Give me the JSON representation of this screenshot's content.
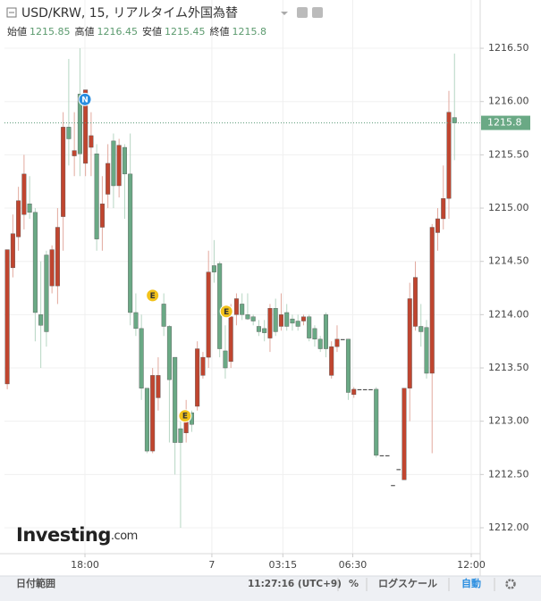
{
  "chart_data": {
    "type": "candlestick",
    "title": "USD/KRW, 15, リアルタイム外国為替",
    "ohlc_labels": [
      "始値",
      "高値",
      "安値",
      "終値"
    ],
    "up_color": "#c0452f",
    "down_color": "#6aa985",
    "open": [
      1213.35,
      1214.44,
      1214.73,
      1214.94,
      1215.04,
      1214.96,
      1214.0,
      1214.56,
      1214.27,
      1214.27,
      1214.92,
      1215.76,
      1215.49,
      1216.07,
      1215.42,
      1215.57,
      1215.51,
      1214.82,
      1215.13,
      1215.63,
      1215.21,
      1215.57,
      1215.32,
      1214.02,
      1213.87,
      1213.31,
      1212.72,
      1213.22,
      1214.1,
      1213.89,
      1213.6,
      1212.93,
      1212.89,
      1213.08,
      1213.14,
      1213.43,
      1213.6,
      1214.46,
      1214.48,
      1213.66,
      1213.56,
      1214.0,
      1214.1,
      1214.0,
      1213.98,
      1213.89,
      1213.87,
      1213.78,
      1214.06,
      1213.89,
      1214.02,
      1213.96,
      1213.94,
      1213.94,
      1213.98,
      1213.87,
      1213.77,
      1214.0,
      1213.43,
      1213.7,
      1213.77,
      1213.77,
      1213.25,
      1213.3,
      1213.3,
      1213.3,
      1213.3,
      1212.68,
      1212.68,
      1212.4,
      1212.55,
      1212.45,
      1213.31,
      1213.89,
      1213.89,
      1213.88,
      1213.45,
      1214.77,
      1214.9,
      1215.09,
      1215.85
    ],
    "high": [
      1214.61,
      1214.94,
      1215.2,
      1215.5,
      1215.3,
      1215.0,
      1214.5,
      1214.6,
      1214.65,
      1215.0,
      1215.9,
      1216.4,
      1215.9,
      1216.5,
      1216.11,
      1215.9,
      1215.6,
      1215.3,
      1215.6,
      1215.7,
      1215.65,
      1215.6,
      1215.7,
      1214.2,
      1214.0,
      1213.31,
      1213.5,
      1213.6,
      1214.2,
      1213.9,
      1213.6,
      1213.0,
      1213.2,
      1213.1,
      1213.75,
      1213.65,
      1214.6,
      1214.7,
      1214.5,
      1213.9,
      1214.1,
      1214.2,
      1214.2,
      1214.2,
      1214.0,
      1213.95,
      1213.95,
      1214.1,
      1214.15,
      1214.2,
      1214.1,
      1214.0,
      1214.0,
      1214.0,
      1214.0,
      1213.9,
      1213.8,
      1214.02,
      1213.75,
      1213.9,
      1213.77,
      1213.77,
      1213.32,
      1213.3,
      1213.3,
      1213.3,
      1213.32,
      1212.68,
      1212.68,
      1212.4,
      1212.55,
      1213.31,
      1214.3,
      1214.5,
      1214.1,
      1213.95,
      1214.85,
      1215.0,
      1215.4,
      1216.1,
      1216.45
    ],
    "low": [
      1213.3,
      1214.35,
      1214.6,
      1214.8,
      1214.9,
      1213.75,
      1213.5,
      1213.7,
      1214.2,
      1214.1,
      1214.6,
      1215.4,
      1215.3,
      1215.3,
      1215.3,
      1215.3,
      1214.6,
      1214.6,
      1215.0,
      1215.0,
      1215.1,
      1214.9,
      1213.9,
      1213.8,
      1213.2,
      1212.7,
      1212.7,
      1213.1,
      1213.8,
      1212.8,
      1212.5,
      1212.0,
      1212.8,
      1212.9,
      1213.1,
      1213.4,
      1213.5,
      1214.3,
      1213.6,
      1213.4,
      1213.5,
      1213.9,
      1213.95,
      1213.95,
      1213.9,
      1213.8,
      1213.75,
      1213.65,
      1213.8,
      1213.85,
      1213.85,
      1213.85,
      1213.85,
      1213.9,
      1213.75,
      1213.7,
      1213.65,
      1213.6,
      1213.4,
      1213.65,
      1213.77,
      1213.2,
      1213.22,
      1213.3,
      1213.3,
      1213.3,
      1212.66,
      1212.68,
      1212.68,
      1212.4,
      1212.55,
      1212.45,
      1213.0,
      1213.85,
      1213.7,
      1213.4,
      1212.7,
      1214.6,
      1214.8,
      1214.9,
      1215.45
    ],
    "close": [
      1214.61,
      1214.76,
      1215.07,
      1215.32,
      1214.96,
      1214.02,
      1213.9,
      1213.84,
      1214.61,
      1214.82,
      1215.76,
      1215.65,
      1215.54,
      1215.51,
      1216.11,
      1215.68,
      1214.71,
      1215.04,
      1215.42,
      1215.21,
      1215.59,
      1215.32,
      1214.02,
      1213.87,
      1213.31,
      1212.72,
      1213.43,
      1213.43,
      1213.89,
      1213.39,
      1212.8,
      1212.8,
      1213.1,
      1212.97,
      1213.68,
      1213.6,
      1214.4,
      1214.4,
      1213.68,
      1213.5,
      1213.98,
      1214.15,
      1214.0,
      1213.96,
      1213.94,
      1213.84,
      1213.83,
      1214.06,
      1213.84,
      1214.0,
      1213.89,
      1213.92,
      1213.89,
      1213.98,
      1213.78,
      1213.77,
      1213.68,
      1213.68,
      1213.7,
      1213.77,
      1213.77,
      1213.27,
      1213.3,
      1213.3,
      1213.3,
      1213.3,
      1212.68,
      1212.68,
      1212.68,
      1212.4,
      1212.55,
      1213.31,
      1214.15,
      1214.35,
      1213.84,
      1213.45,
      1214.82,
      1214.9,
      1215.09,
      1215.9,
      1215.8
    ],
    "xlim": [
      -0.5,
      84.6
    ],
    "xticks": [
      {
        "value": 13.9,
        "label": "18:00"
      },
      {
        "value": 36.6,
        "label": "7"
      },
      {
        "value": 49.3,
        "label": "03:15"
      },
      {
        "value": 61.8,
        "label": "06:30"
      },
      {
        "value": 83.0,
        "label": "12:00"
      }
    ],
    "ylim": [
      1211.757,
      1216.953
    ],
    "yticks": [
      {
        "value": 1212,
        "label": "1212.00"
      },
      {
        "value": 1212.5,
        "label": "1212.50"
      },
      {
        "value": 1213,
        "label": "1213.00"
      },
      {
        "value": 1213.5,
        "label": "1213.50"
      },
      {
        "value": 1214,
        "label": "1214.00"
      },
      {
        "value": 1214.5,
        "label": "1214.50"
      },
      {
        "value": 1215,
        "label": "1215.00"
      },
      {
        "value": 1215.5,
        "label": "1215.50"
      },
      {
        "value": 1216,
        "label": "1216.00"
      },
      {
        "value": 1216.5,
        "label": "1216.50"
      }
    ],
    "grid": true,
    "events": [
      {
        "label": "N",
        "color": "#2a8ee0"
      },
      {
        "label": "E",
        "color": "#f2c21b"
      },
      {
        "label": "E",
        "color": "#f2c21b"
      },
      {
        "label": "E",
        "color": "#f2c21b"
      }
    ],
    "logo": {
      "main": "Investing",
      "suffix": ".com"
    },
    "toolbar": {
      "date_range": "日付範囲",
      "time": "11:27:16 (UTC+9)",
      "percent": "%",
      "log_scale": "ログスケール",
      "auto": "自動"
    }
  }
}
